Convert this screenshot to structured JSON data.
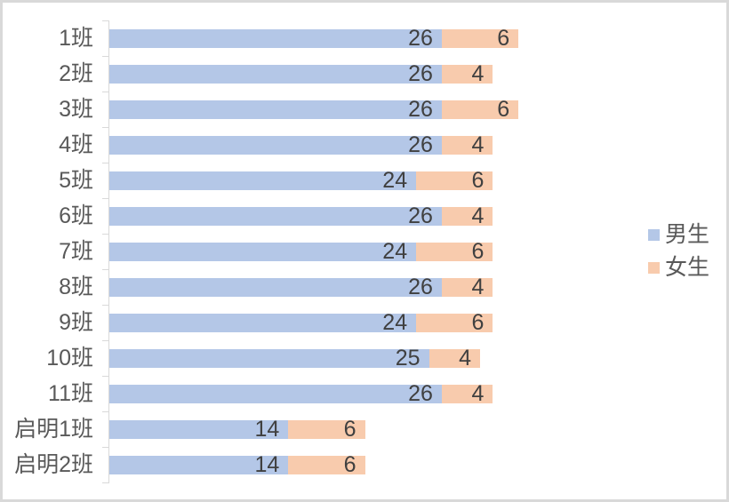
{
  "chart_data": {
    "type": "bar",
    "orientation": "horizontal",
    "stacked": true,
    "title": "",
    "categories": [
      "1班",
      "2班",
      "3班",
      "4班",
      "5班",
      "6班",
      "7班",
      "8班",
      "9班",
      "10班",
      "11班",
      "启明1班",
      "启明2班"
    ],
    "series": [
      {
        "name": "男生",
        "color": "#B4C7E7",
        "values": [
          26,
          26,
          26,
          26,
          24,
          26,
          24,
          26,
          24,
          25,
          26,
          14,
          14
        ]
      },
      {
        "name": "女生",
        "color": "#F8CBAD",
        "values": [
          6,
          4,
          6,
          4,
          6,
          4,
          6,
          4,
          6,
          4,
          4,
          6,
          6
        ]
      }
    ],
    "value_labels_position": "inside-end",
    "legend_position": "right",
    "grid": false,
    "x_axis_labels_visible": false,
    "colors": {
      "axis": "#D9D9D9",
      "frame_border": "#D9D9D9",
      "category_text": "#595959",
      "value_text": "#404040",
      "legend_text": "#595959"
    }
  }
}
